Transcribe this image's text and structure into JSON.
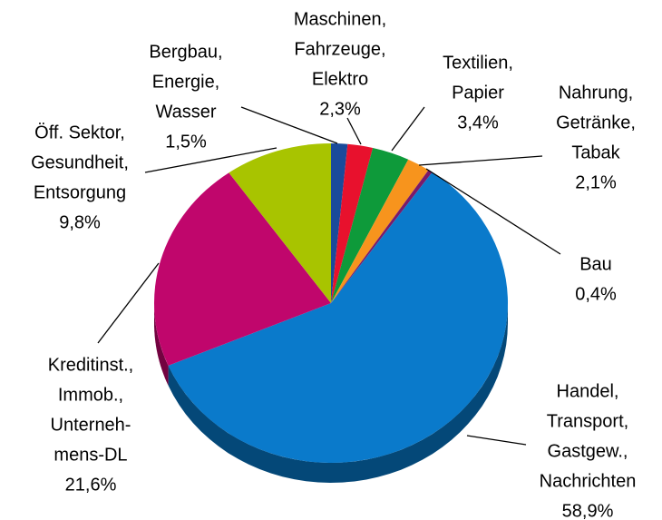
{
  "chart_data": {
    "type": "pie",
    "categories": [
      [
        "Bergbau,",
        "Energie,",
        "Wasser"
      ],
      [
        "Maschinen,",
        "Fahrzeuge,",
        "Elektro"
      ],
      [
        "Textilien,",
        "Papier"
      ],
      [
        "Nahrung,",
        "Getränke,",
        "Tabak"
      ],
      [
        "Bau"
      ],
      [
        "Handel,",
        "Transport,",
        "Gastgew.,",
        "Nachrichten"
      ],
      [
        "Kreditinst.,",
        "Immob.,",
        "Unterneh-",
        "mens-DL"
      ],
      [
        "Öff. Sektor,",
        "Gesundheit,",
        "Entsorgung"
      ]
    ],
    "values": [
      1.5,
      2.3,
      3.4,
      2.1,
      0.4,
      58.9,
      21.6,
      9.8
    ],
    "value_labels": [
      "1,5%",
      "2,3%",
      "3,4%",
      "2,1%",
      "0,4%",
      "58,9%",
      "21,6%",
      "9,8%"
    ],
    "colors": [
      "#1a4a9a",
      "#e8112d",
      "#0e9a3a",
      "#f7941d",
      "#7a1a6a",
      "#0a7acb",
      "#c0066c",
      "#a8c400"
    ],
    "side_colors": [
      "#0e2c5c",
      "#8a0a1b",
      "#085c22",
      "#945911",
      "#490f3f",
      "#044878",
      "#730340",
      "#647500"
    ]
  }
}
